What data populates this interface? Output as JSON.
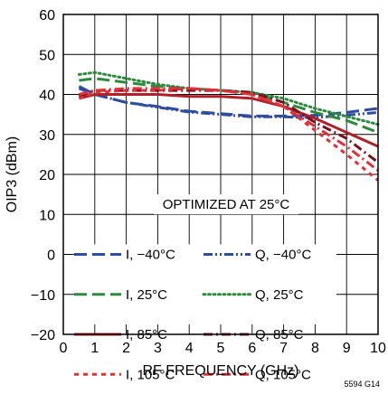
{
  "chart_data": {
    "type": "line",
    "xlabel": "RF FREQUENCY (GHz)",
    "ylabel": "OIP3 (dBm)",
    "xlim": [
      0,
      10
    ],
    "ylim": [
      -20,
      60
    ],
    "xticks": [
      0,
      1,
      2,
      3,
      4,
      5,
      6,
      7,
      8,
      9,
      10
    ],
    "yticks": [
      -20,
      -10,
      0,
      10,
      20,
      30,
      40,
      50,
      60
    ],
    "xtick_labels": [
      "0",
      "1",
      "2",
      "3",
      "4",
      "5",
      "6",
      "7",
      "8",
      "9",
      "10"
    ],
    "ytick_labels": [
      "−20",
      "−10",
      "0",
      "10",
      "20",
      "30",
      "40",
      "50",
      "60"
    ],
    "grid": true,
    "annotation": "OPTIMIZED AT 25°C",
    "figure_id": "5594 G14",
    "legend_position": "lower-left",
    "series": [
      {
        "name": "I, −40°C",
        "color": "#2f4da0",
        "style": "longdash",
        "points": [
          [
            0.5,
            42
          ],
          [
            1,
            40
          ],
          [
            2,
            38
          ],
          [
            3,
            37
          ],
          [
            4,
            35.8
          ],
          [
            5,
            35.2
          ],
          [
            6,
            34.6
          ],
          [
            7,
            34.6
          ],
          [
            8,
            34.8
          ],
          [
            9,
            35.5
          ],
          [
            10,
            36.5
          ]
        ]
      },
      {
        "name": "Q, −40°C",
        "color": "#2f4da0",
        "style": "dashdotdot",
        "points": [
          [
            0.5,
            41.5
          ],
          [
            1,
            40
          ],
          [
            2,
            38
          ],
          [
            3,
            36.8
          ],
          [
            4,
            35.6
          ],
          [
            5,
            35
          ],
          [
            6,
            34.4
          ],
          [
            7,
            34.4
          ],
          [
            8,
            34.2
          ],
          [
            9,
            34.8
          ],
          [
            10,
            35.5
          ]
        ]
      },
      {
        "name": "I, 25°C",
        "color": "#2e8a3e",
        "style": "longdash",
        "points": [
          [
            0.5,
            43.5
          ],
          [
            1,
            44
          ],
          [
            2,
            43
          ],
          [
            3,
            42
          ],
          [
            4,
            41.5
          ],
          [
            5,
            41
          ],
          [
            6,
            40.5
          ],
          [
            7,
            38
          ],
          [
            8,
            35.5
          ],
          [
            9,
            33.5
          ],
          [
            10,
            30.5
          ]
        ]
      },
      {
        "name": "Q, 25°C",
        "color": "#2e8a3e",
        "style": "dotted",
        "points": [
          [
            0.5,
            45
          ],
          [
            1,
            45.5
          ],
          [
            2,
            44
          ],
          [
            3,
            42.5
          ],
          [
            4,
            41.5
          ],
          [
            5,
            41
          ],
          [
            6,
            40.5
          ],
          [
            7,
            39
          ],
          [
            8,
            36.5
          ],
          [
            9,
            34.5
          ],
          [
            10,
            32.5
          ]
        ]
      },
      {
        "name": "I, 85°C",
        "color": "#b0202a",
        "style": "solid",
        "points": [
          [
            0.5,
            39
          ],
          [
            1,
            40
          ],
          [
            2,
            40
          ],
          [
            3,
            40
          ],
          [
            4,
            39.5
          ],
          [
            5,
            39.5
          ],
          [
            6,
            39
          ],
          [
            7,
            37
          ],
          [
            8,
            34
          ],
          [
            9,
            30.5
          ],
          [
            10,
            27
          ]
        ]
      },
      {
        "name": "Q, 85°C",
        "color": "#7a1020",
        "style": "dashdot",
        "points": [
          [
            0.5,
            39.5
          ],
          [
            1,
            41
          ],
          [
            2,
            41
          ],
          [
            3,
            41
          ],
          [
            4,
            41
          ],
          [
            5,
            41
          ],
          [
            6,
            40.5
          ],
          [
            7,
            38
          ],
          [
            8,
            33
          ],
          [
            9,
            29
          ],
          [
            10,
            23
          ]
        ]
      },
      {
        "name": "I, 105°C",
        "color": "#e0303a",
        "style": "shortdash",
        "points": [
          [
            0.5,
            39
          ],
          [
            1,
            40.5
          ],
          [
            2,
            41
          ],
          [
            3,
            41
          ],
          [
            4,
            41.5
          ],
          [
            5,
            41
          ],
          [
            6,
            40
          ],
          [
            7,
            37
          ],
          [
            8,
            31
          ],
          [
            9,
            25
          ],
          [
            10,
            18.5
          ]
        ]
      },
      {
        "name": "Q, 105°C",
        "color": "#e0303a",
        "style": "dashdot",
        "points": [
          [
            0.5,
            40
          ],
          [
            1,
            41
          ],
          [
            2,
            41.5
          ],
          [
            3,
            41.5
          ],
          [
            4,
            41.5
          ],
          [
            5,
            41
          ],
          [
            6,
            40
          ],
          [
            7,
            37
          ],
          [
            8,
            32
          ],
          [
            9,
            27
          ],
          [
            10,
            21
          ]
        ]
      }
    ]
  }
}
